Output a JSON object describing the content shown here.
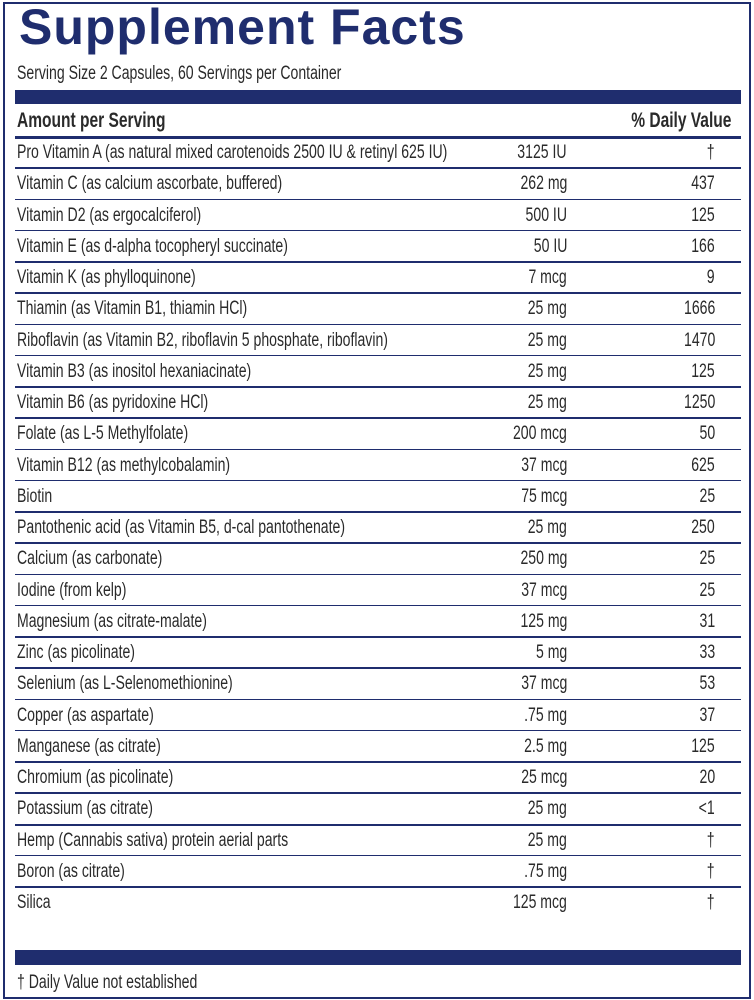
{
  "title": "Supplement Facts",
  "serving": "Serving Size 2 Capsules, 60 Servings per Container",
  "header": {
    "amount": "Amount per Serving",
    "dv": "% Daily Value"
  },
  "rows": [
    [
      "Pro Vitamin A (as natural mixed carotenoids 2500 IU & retinyl 625 IU)",
      "3125 IU",
      "†"
    ],
    [
      "Vitamin C (as calcium ascorbate, buffered)",
      "262 mg",
      "437"
    ],
    [
      "Vitamin D2 (as ergocalciferol)",
      "500 IU",
      "125"
    ],
    [
      "Vitamin E (as d-alpha tocopheryl succinate)",
      "50 IU",
      "166"
    ],
    [
      "Vitamin K (as phylloquinone)",
      "7 mcg",
      "9"
    ],
    [
      "Thiamin (as Vitamin B1, thiamin HCl)",
      "25 mg",
      "1666"
    ],
    [
      "Riboflavin (as Vitamin B2, riboflavin 5 phosphate, riboflavin)",
      "25 mg",
      "1470"
    ],
    [
      "Vitamin B3 (as inositol hexaniacinate)",
      "25 mg",
      "125"
    ],
    [
      "Vitamin B6 (as pyridoxine HCl)",
      "25 mg",
      "1250"
    ],
    [
      "Folate (as L-5 Methylfolate)",
      "200 mcg",
      "50"
    ],
    [
      "Vitamin B12 (as methylcobalamin)",
      "37 mcg",
      "625"
    ],
    [
      "Biotin",
      "75 mcg",
      "25"
    ],
    [
      "Pantothenic acid (as Vitamin B5, d-cal pantothenate)",
      "25 mg",
      "250"
    ],
    [
      "Calcium (as carbonate)",
      "250 mg",
      "25"
    ],
    [
      "Iodine (from kelp)",
      "37 mcg",
      "25"
    ],
    [
      "Magnesium (as citrate-malate)",
      "125 mg",
      "31"
    ],
    [
      "Zinc (as picolinate)",
      "5 mg",
      "33"
    ],
    [
      "Selenium (as L-Selenomethionine)",
      "37 mcg",
      "53"
    ],
    [
      "Copper (as aspartate)",
      ".75 mg",
      "37"
    ],
    [
      "Manganese (as citrate)",
      "2.5 mg",
      "125"
    ],
    [
      "Chromium (as picolinate)",
      "25 mcg",
      "20"
    ],
    [
      "Potassium (as citrate)",
      "25 mg",
      "<1"
    ],
    [
      "Hemp (Cannabis sativa) protein aerial parts",
      "25 mg",
      "†"
    ],
    [
      "Boron (as citrate)",
      ".75 mg",
      "†"
    ],
    [
      "Silica",
      "125 mcg",
      "†"
    ]
  ],
  "footnote": "† Daily Value not established"
}
